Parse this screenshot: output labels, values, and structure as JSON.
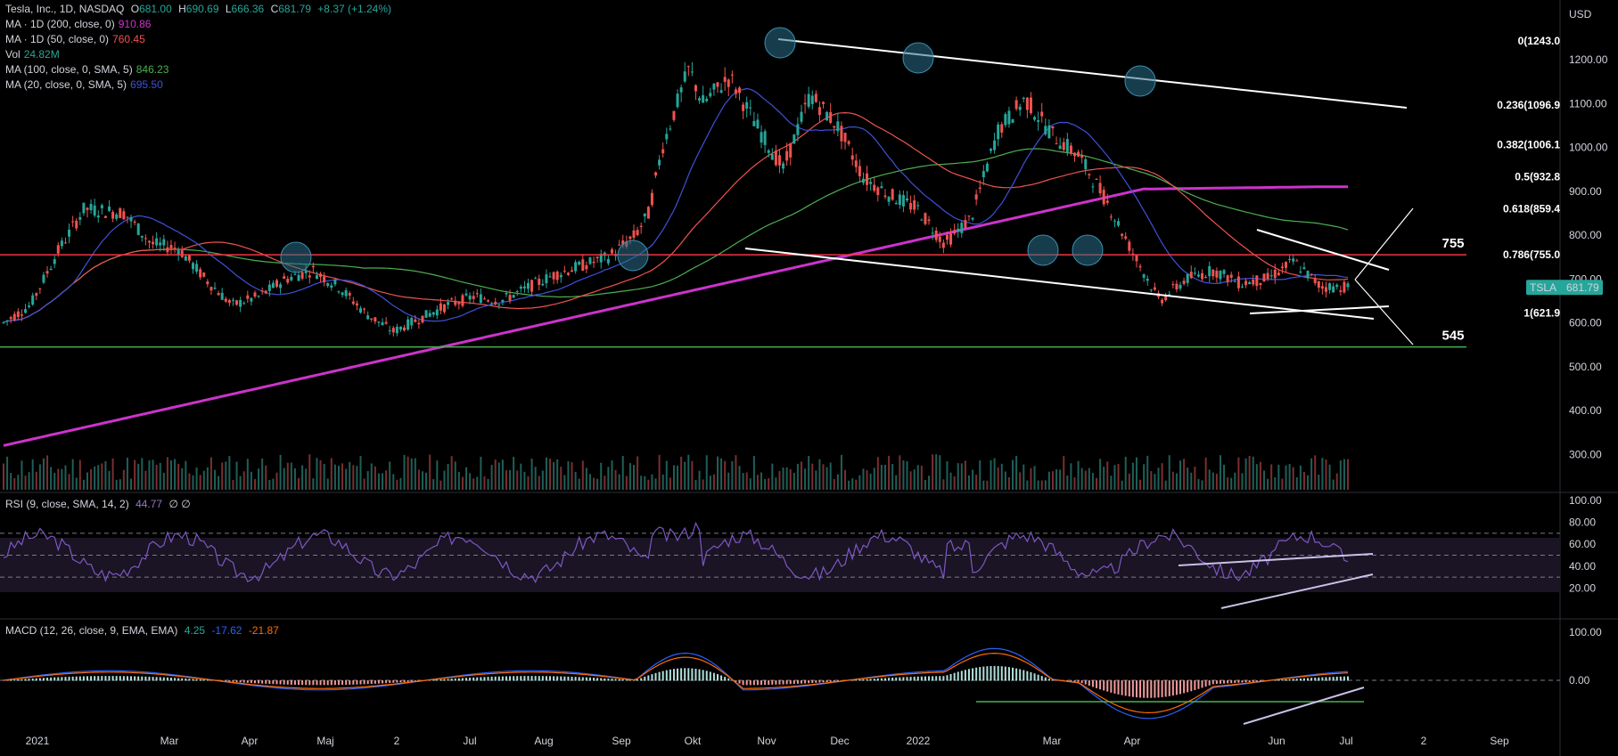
{
  "header": {
    "symbol": "Tesla, Inc., 1D, NASDAQ",
    "o_label": "O",
    "o": "681.00",
    "h_label": "H",
    "h": "690.69",
    "l_label": "L",
    "l": "666.36",
    "c_label": "C",
    "c": "681.79",
    "change": "+8.37 (+1.24%)"
  },
  "indicators": [
    {
      "label": "MA · 1D (200, close, 0)",
      "value": "910.86",
      "color": "#cc33cc"
    },
    {
      "label": "MA · 1D (50, close, 0)",
      "value": "760.45",
      "color": "#ef5350"
    },
    {
      "label": "Vol",
      "value": "24.82M",
      "color": "#26a69a"
    },
    {
      "label": "MA (100, close, 0, SMA, 5)",
      "value": "846.23",
      "color": "#4caf50"
    },
    {
      "label": "MA (20, close, 0, SMA, 5)",
      "value": "695.50",
      "color": "#3f51d9"
    }
  ],
  "rsi_legend": {
    "label": "RSI (9, close, SMA, 14, 2)",
    "value": "44.77",
    "extra": "∅ ∅",
    "color": "#7e57c2"
  },
  "macd_legend": {
    "label": "MACD (12, 26, close, 9, EMA, EMA)",
    "v1": "4.25",
    "v2": "-17.62",
    "v3": "-21.87",
    "c1": "#26a69a",
    "c2": "#2962ff",
    "c3": "#ff6d00"
  },
  "chart_data": {
    "type": "candlestick",
    "currency": "USD",
    "price_ticks": [
      "1200.00",
      "1100.00",
      "1000.00",
      "900.00",
      "800.00",
      "700.00",
      "600.00",
      "500.00",
      "400.00",
      "300.00"
    ],
    "rsi_ticks": [
      "100.00",
      "80.00",
      "60.00",
      "40.00",
      "20.00"
    ],
    "macd_ticks": [
      "100.00",
      "0.00"
    ],
    "x_labels": [
      "2021",
      "Mar",
      "Apr",
      "Maj",
      "2",
      "Jul",
      "Aug",
      "Sep",
      "Okt",
      "Nov",
      "Dec",
      "2022",
      "Mar",
      "Apr",
      "Jun",
      "Jul",
      "2",
      "Sep"
    ],
    "last_price": {
      "symbol": "TSLA",
      "value": "681.79"
    },
    "fib_levels": [
      {
        "label": "0(1243.0",
        "value": 1243
      },
      {
        "label": "0.236(1096.9",
        "value": 1096.9
      },
      {
        "label": "0.382(1006.1",
        "value": 1006.1
      },
      {
        "label": "0.5(932.8",
        "value": 932.8
      },
      {
        "label": "0.618(859.4",
        "value": 859.4
      },
      {
        "label": "0.786(755.0",
        "value": 755
      },
      {
        "label": "1(621.9",
        "value": 621.9
      }
    ],
    "horizontal_levels": [
      {
        "label": "755",
        "value": 755,
        "color": "#f23645"
      },
      {
        "label": "545",
        "value": 545,
        "color": "#4caf50"
      }
    ],
    "price_series": [
      {
        "t": 0,
        "p": 600
      },
      {
        "t": 0.02,
        "p": 640
      },
      {
        "t": 0.04,
        "p": 760
      },
      {
        "t": 0.06,
        "p": 860
      },
      {
        "t": 0.09,
        "p": 850
      },
      {
        "t": 0.11,
        "p": 780
      },
      {
        "t": 0.13,
        "p": 770
      },
      {
        "t": 0.15,
        "p": 700
      },
      {
        "t": 0.17,
        "p": 640
      },
      {
        "t": 0.19,
        "p": 660
      },
      {
        "t": 0.21,
        "p": 700
      },
      {
        "t": 0.23,
        "p": 720
      },
      {
        "t": 0.25,
        "p": 680
      },
      {
        "t": 0.27,
        "p": 620
      },
      {
        "t": 0.29,
        "p": 580
      },
      {
        "t": 0.31,
        "p": 610
      },
      {
        "t": 0.33,
        "p": 640
      },
      {
        "t": 0.35,
        "p": 660
      },
      {
        "t": 0.37,
        "p": 650
      },
      {
        "t": 0.39,
        "p": 680
      },
      {
        "t": 0.41,
        "p": 710
      },
      {
        "t": 0.43,
        "p": 730
      },
      {
        "t": 0.45,
        "p": 750
      },
      {
        "t": 0.47,
        "p": 800
      },
      {
        "t": 0.48,
        "p": 850
      },
      {
        "t": 0.49,
        "p": 1000
      },
      {
        "t": 0.51,
        "p": 1180
      },
      {
        "t": 0.52,
        "p": 1100
      },
      {
        "t": 0.54,
        "p": 1160
      },
      {
        "t": 0.56,
        "p": 1050
      },
      {
        "t": 0.58,
        "p": 950
      },
      {
        "t": 0.6,
        "p": 1120
      },
      {
        "t": 0.62,
        "p": 1050
      },
      {
        "t": 0.64,
        "p": 930
      },
      {
        "t": 0.66,
        "p": 890
      },
      {
        "t": 0.68,
        "p": 860
      },
      {
        "t": 0.7,
        "p": 780
      },
      {
        "t": 0.72,
        "p": 840
      },
      {
        "t": 0.74,
        "p": 1040
      },
      {
        "t": 0.76,
        "p": 1110
      },
      {
        "t": 0.78,
        "p": 1030
      },
      {
        "t": 0.8,
        "p": 980
      },
      {
        "t": 0.82,
        "p": 880
      },
      {
        "t": 0.84,
        "p": 760
      },
      {
        "t": 0.86,
        "p": 650
      },
      {
        "t": 0.88,
        "p": 700
      },
      {
        "t": 0.9,
        "p": 720
      },
      {
        "t": 0.92,
        "p": 690
      },
      {
        "t": 0.94,
        "p": 700
      },
      {
        "t": 0.96,
        "p": 740
      },
      {
        "t": 0.98,
        "p": 682
      }
    ]
  }
}
